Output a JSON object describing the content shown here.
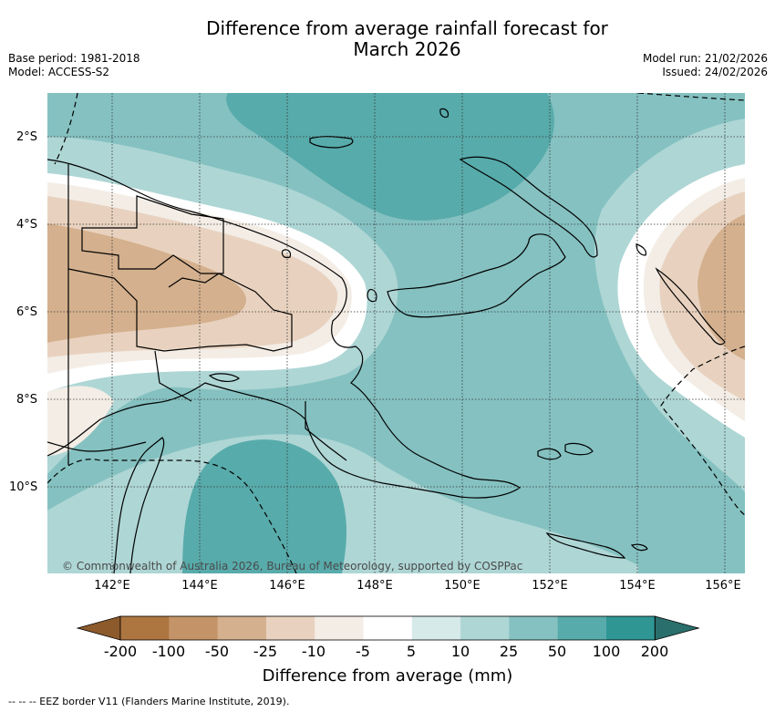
{
  "title": {
    "line1": "Difference from average rainfall forecast for",
    "line2": "March 2026"
  },
  "meta": {
    "base_period": "Base period: 1981-2018",
    "model": "Model: ACCESS-S2",
    "model_run": "Model run: 21/02/2026",
    "issued": "Issued: 24/02/2026"
  },
  "map": {
    "lat_labels": [
      "2°S",
      "4°S",
      "6°S",
      "8°S",
      "10°S"
    ],
    "lon_labels": [
      "142°E",
      "144°E",
      "146°E",
      "148°E",
      "150°E",
      "152°E",
      "154°E",
      "156°E"
    ],
    "copyright": "© Commonwealth of Australia 2026, Bureau of Meteorology, supported by COSPPac"
  },
  "colorbar": {
    "labels": [
      "-200",
      "-100",
      "-50",
      "-25",
      "-10",
      "-5",
      "5",
      "10",
      "25",
      "50",
      "100",
      "200"
    ],
    "colors": [
      "#8d5a2c",
      "#ad7640",
      "#c49468",
      "#d4b08e",
      "#e8d2bf",
      "#f3ede6",
      "#ffffff",
      "#d6eae9",
      "#aed6d5",
      "#85c1c1",
      "#58abab",
      "#2f9694",
      "#2a6f6c"
    ],
    "title": "Difference from average (mm)"
  },
  "footer": {
    "eez_note": "--  --  -- EEZ border V11 (Flanders Marine Institute, 2019)."
  }
}
